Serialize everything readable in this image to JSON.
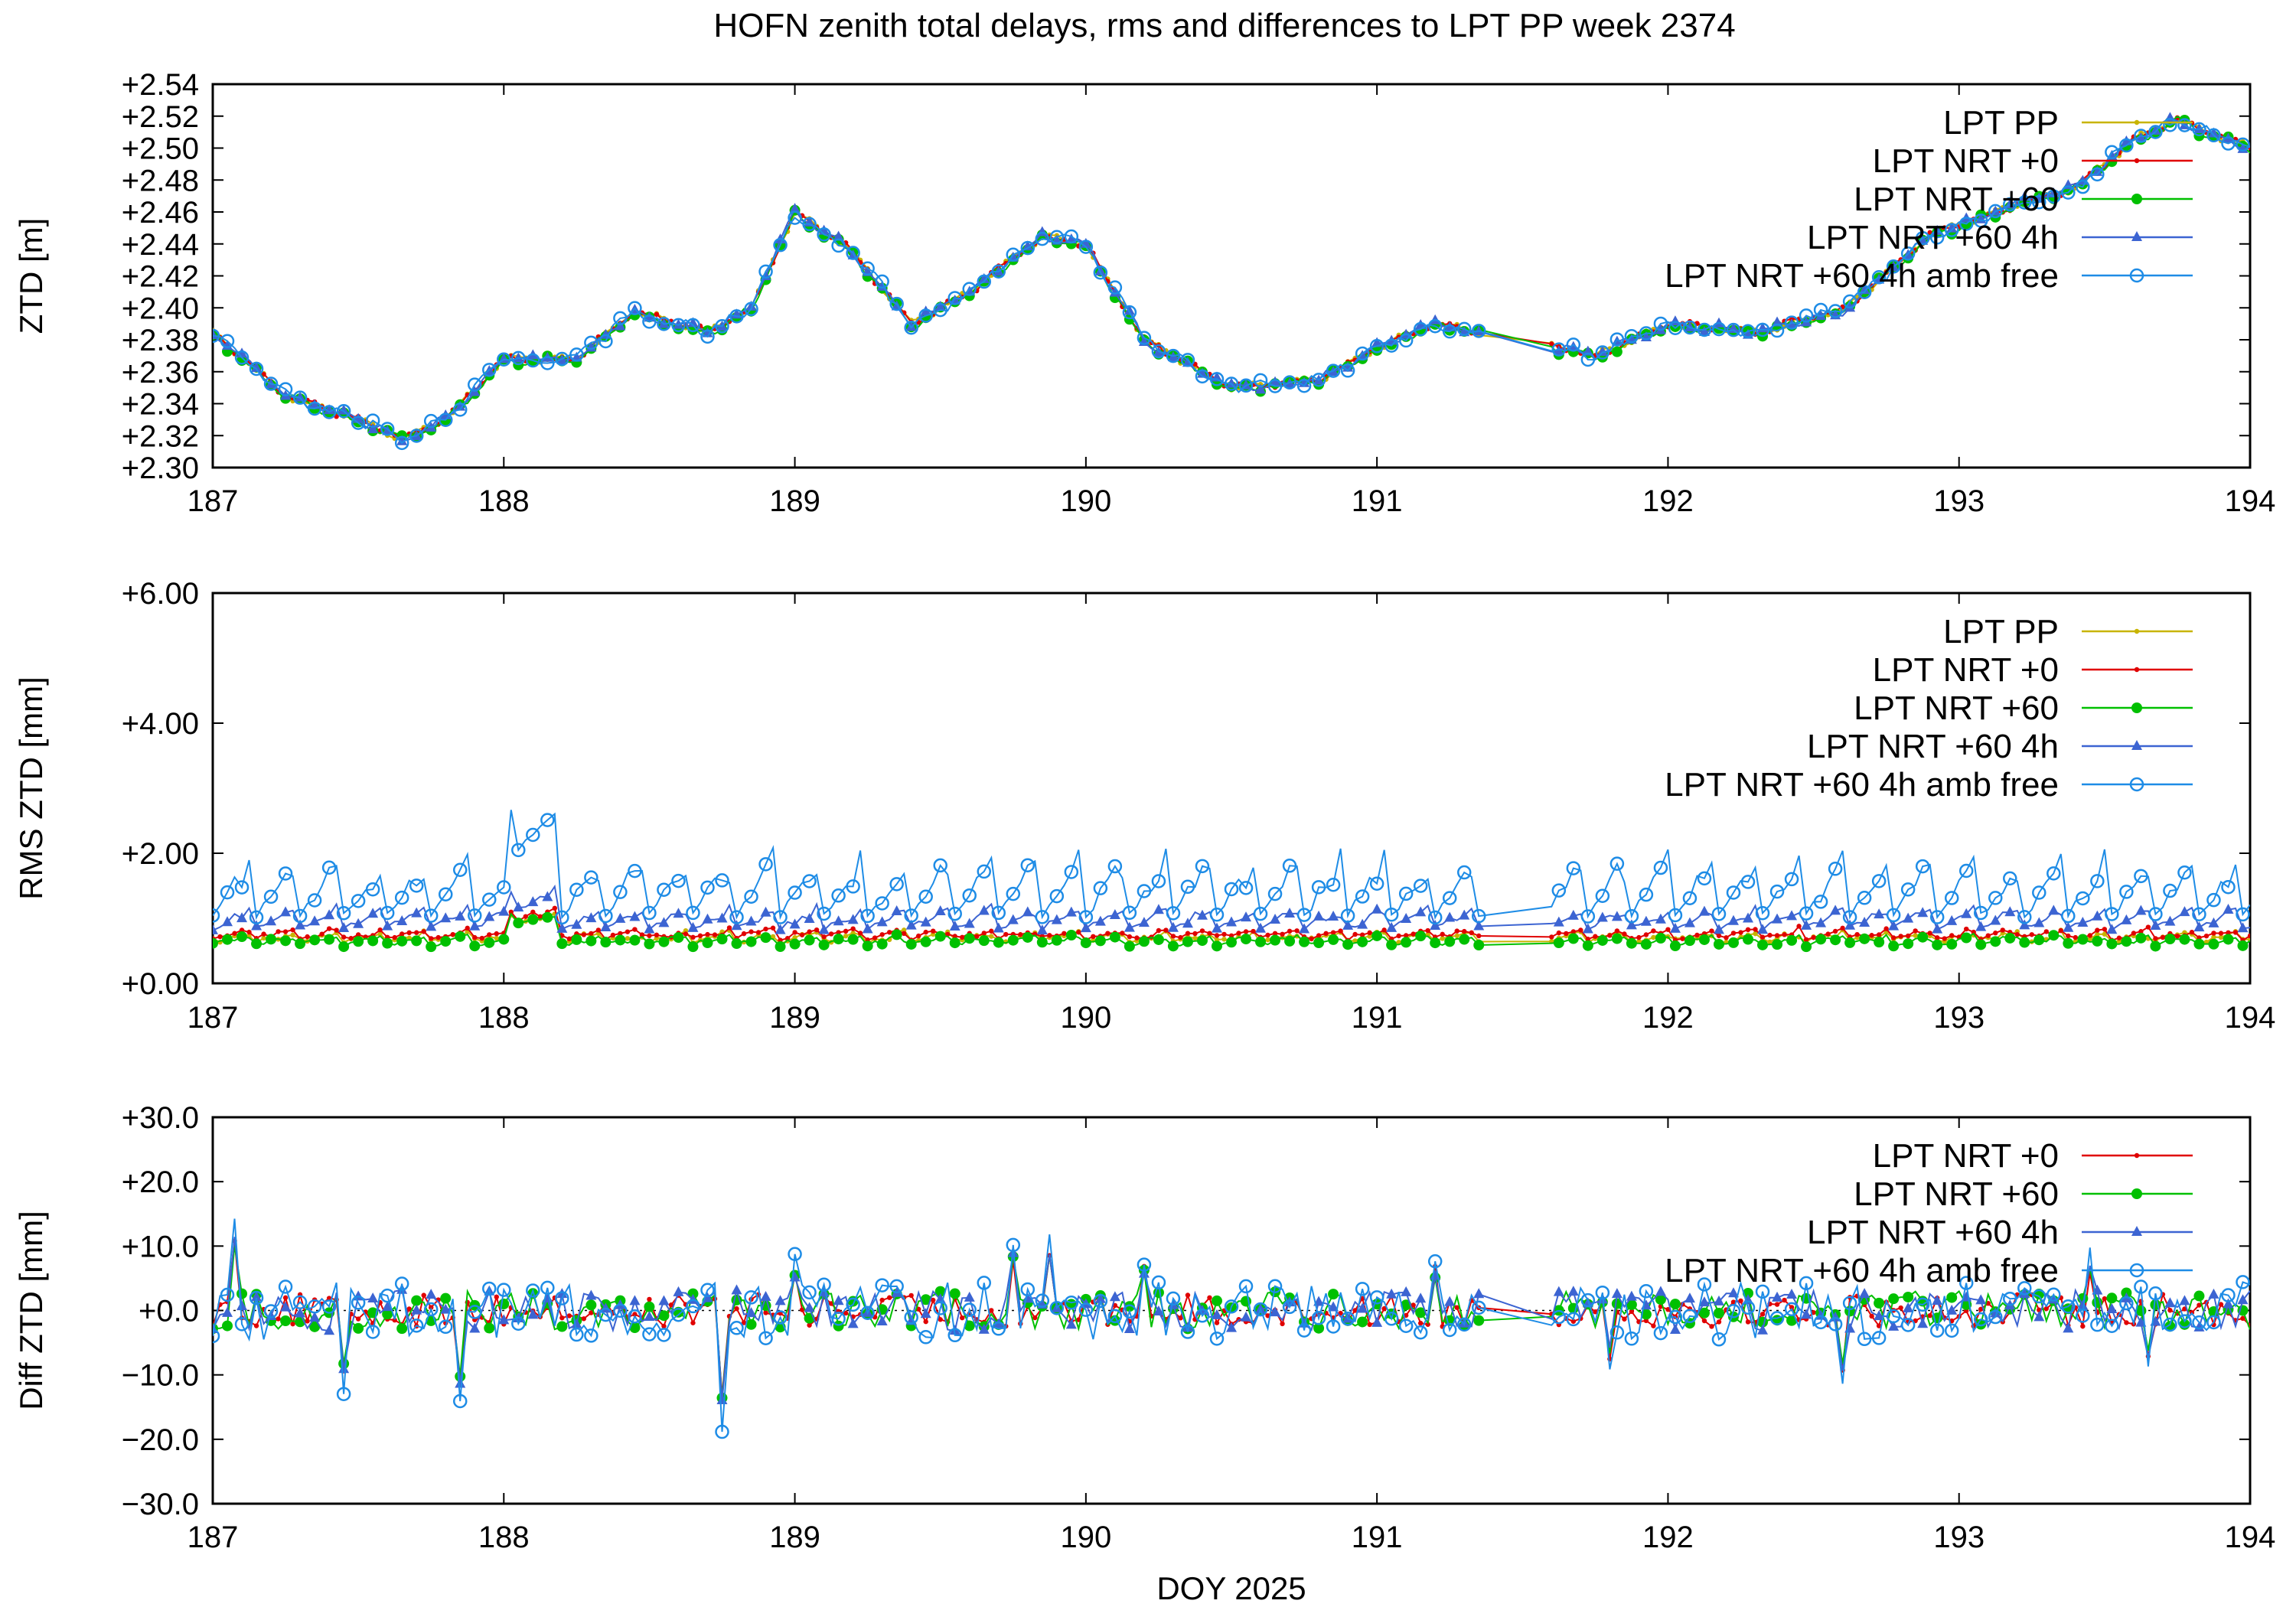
{
  "chart_data": [
    {
      "type": "line",
      "title": "HOFN zenith total delays, rms and differences to LPT PP week 2374",
      "xlabel": "",
      "ylabel": "ZTD [m]",
      "xlim": [
        187,
        194
      ],
      "ylim": [
        2.3,
        2.54
      ],
      "xticks": [
        "187",
        "188",
        "189",
        "190",
        "191",
        "192",
        "193",
        "194"
      ],
      "yticks": [
        "+2.30",
        "+2.32",
        "+2.34",
        "+2.36",
        "+2.38",
        "+2.40",
        "+2.42",
        "+2.44",
        "+2.46",
        "+2.48",
        "+2.50",
        "+2.52",
        "+2.54"
      ],
      "legend_position": "top-right",
      "legend": [
        "LPT PP",
        "LPT NRT +0",
        "LPT NRT +60",
        "LPT NRT +60 4h",
        "LPT NRT +60 4h amb free"
      ],
      "key": {
        "x": [
          187.0,
          187.25,
          187.5,
          187.65,
          187.8,
          188.0,
          188.25,
          188.45,
          188.7,
          188.85,
          189.0,
          189.2,
          189.4,
          189.6,
          189.85,
          190.0,
          190.2,
          190.5,
          190.8,
          191.0,
          191.2,
          191.5,
          191.75,
          192.0,
          192.3,
          192.6,
          192.9,
          193.2,
          193.4,
          193.6,
          193.75,
          193.85,
          194.0
        ],
        "y": [
          2.385,
          2.345,
          2.33,
          2.318,
          2.33,
          2.368,
          2.368,
          2.398,
          2.385,
          2.4,
          2.46,
          2.435,
          2.39,
          2.41,
          2.445,
          2.44,
          2.38,
          2.35,
          2.355,
          2.375,
          2.39,
          2.38,
          2.37,
          2.39,
          2.385,
          2.398,
          2.445,
          2.465,
          2.475,
          2.505,
          2.518,
          2.51,
          2.5
        ]
      },
      "series": [
        {
          "name": "LPT PP",
          "color": "#c8b400",
          "marker": "dot",
          "jitter": 0.001,
          "offset": 0.0
        },
        {
          "name": "LPT NRT +0",
          "color": "#e00000",
          "marker": "dot",
          "jitter": 0.0015,
          "offset": 0.0
        },
        {
          "name": "LPT NRT +60",
          "color": "#00c000",
          "marker": "bigdot",
          "jitter": 0.002,
          "offset": -0.001
        },
        {
          "name": "LPT NRT +60 4h",
          "color": "#3c64d2",
          "marker": "triangle",
          "jitter": 0.002,
          "offset": 0.0
        },
        {
          "name": "LPT NRT +60 4h amb free",
          "color": "#1e8ce6",
          "marker": "ring",
          "jitter": 0.003,
          "offset": 0.0
        }
      ]
    },
    {
      "type": "line",
      "title": "",
      "xlabel": "",
      "ylabel": "RMS ZTD [mm]",
      "xlim": [
        187,
        194
      ],
      "ylim": [
        0,
        6
      ],
      "xticks": [
        "187",
        "188",
        "189",
        "190",
        "191",
        "192",
        "193",
        "194"
      ],
      "yticks": [
        "+0.00",
        "+2.00",
        "+4.00",
        "+6.00"
      ],
      "legend_position": "top-right",
      "legend": [
        "LPT PP",
        "LPT NRT +0",
        "LPT NRT +60",
        "LPT NRT +60 4h",
        "LPT NRT +60 4h amb free"
      ],
      "series": [
        {
          "name": "LPT PP",
          "color": "#c8b400",
          "marker": "dot",
          "base": 0.65,
          "amp": 0.12
        },
        {
          "name": "LPT NRT +0",
          "color": "#e00000",
          "marker": "dot",
          "base": 0.7,
          "amp": 0.12
        },
        {
          "name": "LPT NRT +60",
          "color": "#00c000",
          "marker": "bigdot",
          "base": 0.6,
          "amp": 0.12
        },
        {
          "name": "LPT NRT +60 4h",
          "color": "#3c64d2",
          "marker": "triangle",
          "base": 0.85,
          "amp": 0.3
        },
        {
          "name": "LPT NRT +60 4h amb free",
          "color": "#1e8ce6",
          "marker": "ring",
          "base": 1.05,
          "amp": 0.85
        }
      ]
    },
    {
      "type": "line",
      "title": "",
      "xlabel": "DOY 2025",
      "ylabel": "Diff ZTD [mm]",
      "xlim": [
        187,
        194
      ],
      "ylim": [
        -30,
        30
      ],
      "xticks": [
        "187",
        "188",
        "189",
        "190",
        "191",
        "192",
        "193",
        "194"
      ],
      "yticks": [
        "−30.0",
        "−20.0",
        "−10.0",
        "+0.0",
        "+10.0",
        "+20.0",
        "+30.0"
      ],
      "legend_position": "top-right",
      "legend": [
        "LPT NRT +0",
        "LPT NRT +60",
        "LPT NRT +60 4h",
        "LPT NRT +60 4h amb free"
      ],
      "spikes": [
        [
          187.08,
          14
        ],
        [
          187.45,
          -12
        ],
        [
          187.85,
          -14
        ],
        [
          188.75,
          -18
        ],
        [
          189.0,
          8
        ],
        [
          189.75,
          11
        ],
        [
          189.87,
          12
        ],
        [
          190.2,
          8
        ],
        [
          191.2,
          8
        ],
        [
          191.8,
          -9
        ],
        [
          192.6,
          -12
        ],
        [
          193.45,
          9
        ],
        [
          193.65,
          -9
        ]
      ],
      "series": [
        {
          "name": "LPT NRT +0",
          "color": "#e00000",
          "marker": "dot",
          "amp": 2.5
        },
        {
          "name": "LPT NRT +60",
          "color": "#00c000",
          "marker": "bigdot",
          "amp": 3.0
        },
        {
          "name": "LPT NRT +60 4h",
          "color": "#3c64d2",
          "marker": "triangle",
          "amp": 3.2
        },
        {
          "name": "LPT NRT +60 4h amb free",
          "color": "#1e8ce6",
          "marker": "ring",
          "amp": 4.5
        }
      ]
    }
  ]
}
